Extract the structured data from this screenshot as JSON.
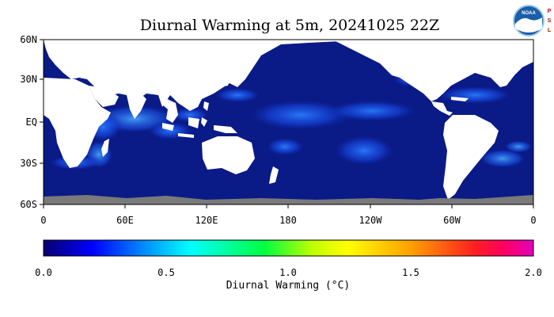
{
  "title": "Diurnal Warming at 5m, 20241025 22Z",
  "logo": {
    "text": "NOAA",
    "side_letters": [
      "P",
      "S",
      "L"
    ],
    "icon": "noaa-logo-icon"
  },
  "map": {
    "variable": "Diurnal Warming",
    "latitude_ticks": [
      "60N",
      "30N",
      "EQ",
      "30S",
      "60S"
    ],
    "longitude_ticks": [
      "0",
      "60E",
      "120E",
      "180",
      "120W",
      "60W",
      "0"
    ],
    "ocean_color": "#0a1a86",
    "land_color": "#ffffff",
    "no_data_color": "#7a7a7a"
  },
  "colorbar": {
    "label": "Diurnal Warming (°C)",
    "tick_labels": [
      "0.0",
      "0.5",
      "1.0",
      "1.5",
      "2.0"
    ],
    "range": [
      0.0,
      2.0
    ],
    "colors": [
      "#0a0070",
      "#0000ff",
      "#00a0ff",
      "#00ffff",
      "#00ff40",
      "#c0ff00",
      "#ffff00",
      "#ffa000",
      "#ff4000",
      "#ff0040",
      "#e000c0"
    ]
  }
}
